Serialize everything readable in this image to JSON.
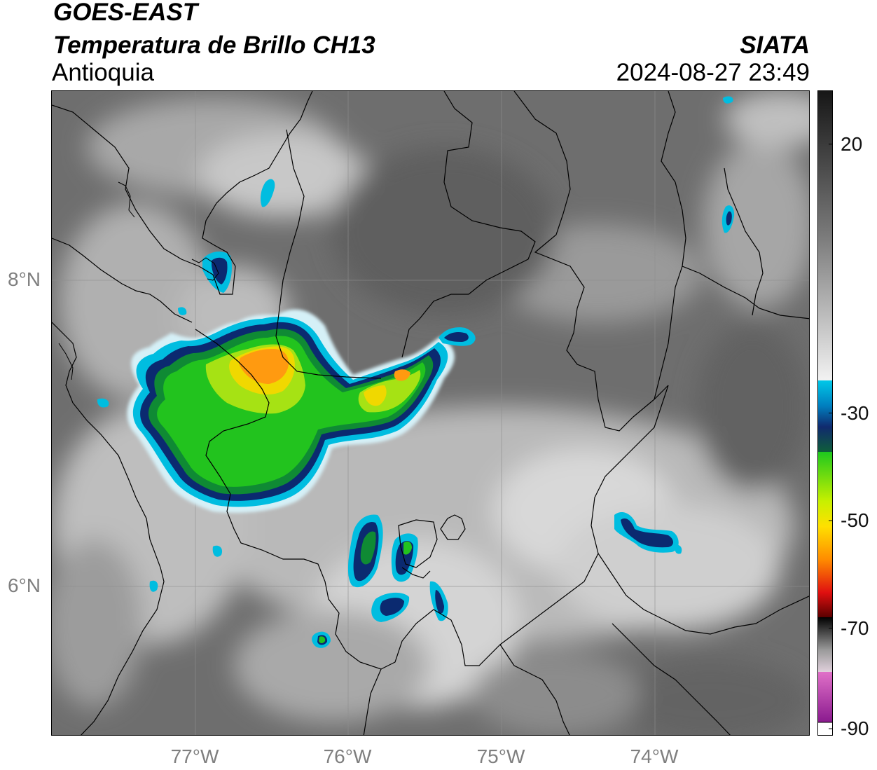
{
  "header": {
    "source": "GOES-EAST",
    "product": "Temperatura de Brillo CH13",
    "region": "Antioquia",
    "organization": "SIATA",
    "timestamp": "2024-08-27 23:49"
  },
  "map": {
    "longitude_labels": [
      "77°W",
      "76°W",
      "75°W",
      "74°W"
    ],
    "latitude_labels": [
      "8°N",
      "6°N"
    ],
    "extent": {
      "lon_min": -77.95,
      "lon_max": -72.98,
      "lat_min": 5.07,
      "lat_max": 9.23
    }
  },
  "colorbar": {
    "range": [
      -90,
      30
    ],
    "tick_labels": [
      "20",
      "-30",
      "-50",
      "-70",
      "-90"
    ],
    "tick_values": [
      20,
      -30,
      -50,
      -70,
      -90
    ],
    "colors": {
      "warm_gray_dark": "#161616",
      "warm_gray_light": "#f2f2f2",
      "cyan": "#00c8e8",
      "navy": "#102a6e",
      "green": "#1ec81e",
      "lime": "#c8f000",
      "yellow": "#ffe000",
      "orange": "#ff8c00",
      "red": "#e01010",
      "black": "#000000",
      "pink": "#e070c8",
      "purple": "#8a1a8e"
    }
  }
}
